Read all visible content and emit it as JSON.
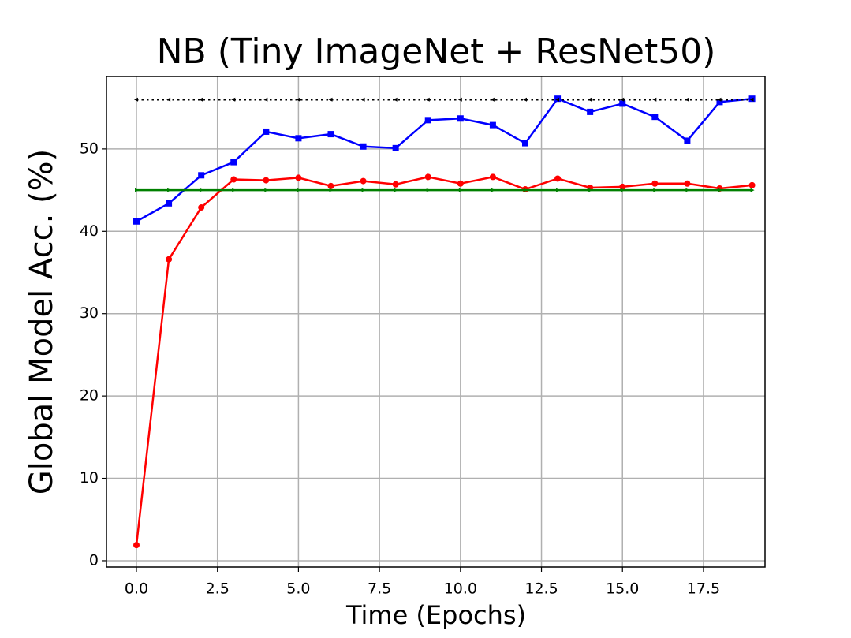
{
  "chart_data": {
    "type": "line",
    "title": "NB (Tiny ImageNet + ResNet50)",
    "x_label": "Time (Epochs)",
    "y_label": "Global Model Acc. (%)",
    "x": [
      0,
      1,
      2,
      3,
      4,
      5,
      6,
      7,
      8,
      9,
      10,
      11,
      12,
      13,
      14,
      15,
      16,
      17,
      18,
      19
    ],
    "series": [
      {
        "color": "#0000ff",
        "marker": "square",
        "linestyle": "solid",
        "values": [
          41.2,
          43.4,
          46.8,
          48.4,
          52.1,
          51.3,
          51.8,
          50.3,
          50.1,
          53.5,
          53.7,
          52.9,
          50.7,
          56.1,
          54.5,
          55.5,
          53.9,
          51.0,
          55.7,
          56.1
        ]
      },
      {
        "color": "#ff0000",
        "marker": "circle",
        "linestyle": "solid",
        "values": [
          1.9,
          36.6,
          42.9,
          46.3,
          46.2,
          46.5,
          45.5,
          46.1,
          45.7,
          46.6,
          45.8,
          46.6,
          45.1,
          46.4,
          45.3,
          45.4,
          45.8,
          45.8,
          45.2,
          45.6
        ]
      },
      {
        "color": "#008000",
        "marker": "triangle-right",
        "linestyle": "solid",
        "values": [
          45,
          45,
          45,
          45,
          45,
          45,
          45,
          45,
          45,
          45,
          45,
          45,
          45,
          45,
          45,
          45,
          45,
          45,
          45,
          45
        ]
      },
      {
        "color": "#000000",
        "marker": "triangle-left",
        "linestyle": "dotted",
        "values": [
          56,
          56,
          56,
          56,
          56,
          56,
          56,
          56,
          56,
          56,
          56,
          56,
          56,
          56,
          56,
          56,
          56,
          56,
          56,
          56
        ]
      }
    ],
    "xlim": [
      -0.925,
      19.4
    ],
    "ylim": [
      -0.77,
      58.8
    ],
    "xticks": [
      {
        "value": 0,
        "label": "0.0"
      },
      2.5,
      {
        "value": 5,
        "label": "5.0"
      },
      7.5,
      {
        "value": 10,
        "label": "10.0"
      },
      12.5,
      {
        "value": 15,
        "label": "15.0"
      },
      17.5
    ],
    "yticks": [
      0,
      10,
      20,
      30,
      40,
      50
    ],
    "grid": true
  }
}
